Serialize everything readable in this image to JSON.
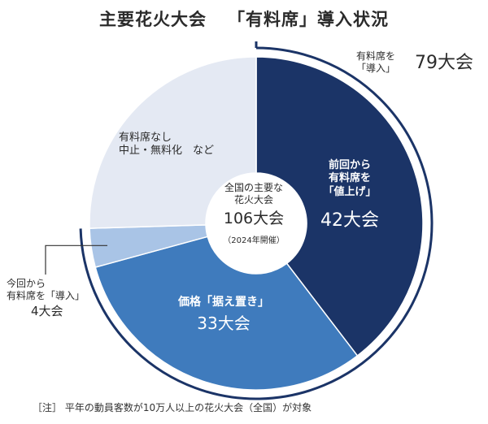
{
  "title": {
    "left": "主要花火大会",
    "right": "「有料席」導入状況"
  },
  "total_callout": {
    "line1": "有料席を",
    "line2": "「導入」",
    "value": "79大会"
  },
  "center": {
    "line1": "全国の主要な",
    "line2": "花火大会",
    "value": "106大会",
    "sub": "（2024年開催）"
  },
  "labels": {
    "raise": {
      "line1": "前回から",
      "line2": "有料席を",
      "line3": "「値上げ」",
      "value": "42大会"
    },
    "keep": {
      "line1": "価格「据え置き」",
      "value": "33大会"
    },
    "introduce": {
      "line1": "今回から",
      "line2": "有料席を「導入」",
      "value": "4大会"
    },
    "none": {
      "line1": "有料席なし",
      "line2": "中止・無料化　など"
    }
  },
  "note": "［注］ 平年の動員客数が10万人以上の花火大会（全国）が対象",
  "colors": {
    "raise": "#1b3467",
    "keep": "#3f7bbd",
    "introduce": "#a9c4e6",
    "none": "#e4e9f3",
    "ring": "#1b3467",
    "line": "#333333"
  },
  "chart_data": {
    "type": "pie",
    "total": 106,
    "categories": [
      "前回から有料席を「値上げ」",
      "価格「据え置き」",
      "今回から有料席を「導入」",
      "有料席なし 中止・無料化 など"
    ],
    "values": [
      42,
      33,
      4,
      27
    ],
    "paid_total": 79
  }
}
